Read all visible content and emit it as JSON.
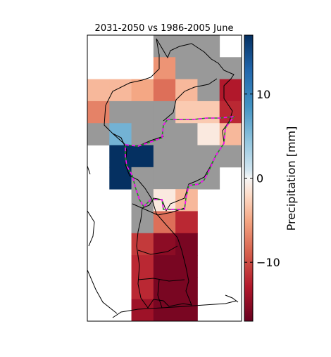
{
  "chart_data": {
    "type": "heatmap",
    "title": "2031-2050 vs 1986-2005 June",
    "colorbar": {
      "label": "Precipitation [mm]",
      "ticks": [
        10,
        0,
        -10
      ],
      "tick_labels": [
        "10",
        "0",
        "−10"
      ],
      "range": [
        -17,
        17
      ],
      "colormap": "RdBu"
    },
    "grid": {
      "columns": 7,
      "rows": 13,
      "values": [
        [
          null,
          null,
          null,
          "nodata",
          "nodata",
          "nodata",
          null
        ],
        [
          null,
          null,
          null,
          -6,
          "nodata",
          "nodata",
          "nodata"
        ],
        [
          -4,
          -4,
          -5,
          -8,
          -4,
          "nodata",
          -13
        ],
        [
          -7,
          "nodata",
          "nodata",
          "nodata",
          -3,
          -3,
          -12
        ],
        [
          "nodata",
          6,
          "nodata",
          "nodata",
          "nodata",
          -1,
          -4
        ],
        [
          null,
          17,
          17,
          "nodata",
          "nodata",
          "nodata",
          "nodata"
        ],
        [
          null,
          17,
          "nodata",
          "nodata",
          "nodata",
          "nodata",
          null
        ],
        [
          null,
          null,
          "nodata",
          -1,
          -4,
          null,
          null
        ],
        [
          null,
          null,
          "nodata",
          -8,
          -12,
          null,
          null
        ],
        [
          null,
          null,
          -11,
          -15,
          -16,
          null,
          null
        ],
        [
          null,
          null,
          -12,
          -16,
          -16,
          null,
          null
        ],
        [
          null,
          null,
          -12,
          -16,
          -16,
          null,
          null
        ],
        [
          null,
          null,
          -14,
          -16,
          -16,
          null,
          null
        ]
      ]
    },
    "colors": {
      "nodata": "#999999",
      "outline": "#000000",
      "dashed_outline_a": "#ff00ff",
      "dashed_outline_b": "#228b22"
    }
  }
}
